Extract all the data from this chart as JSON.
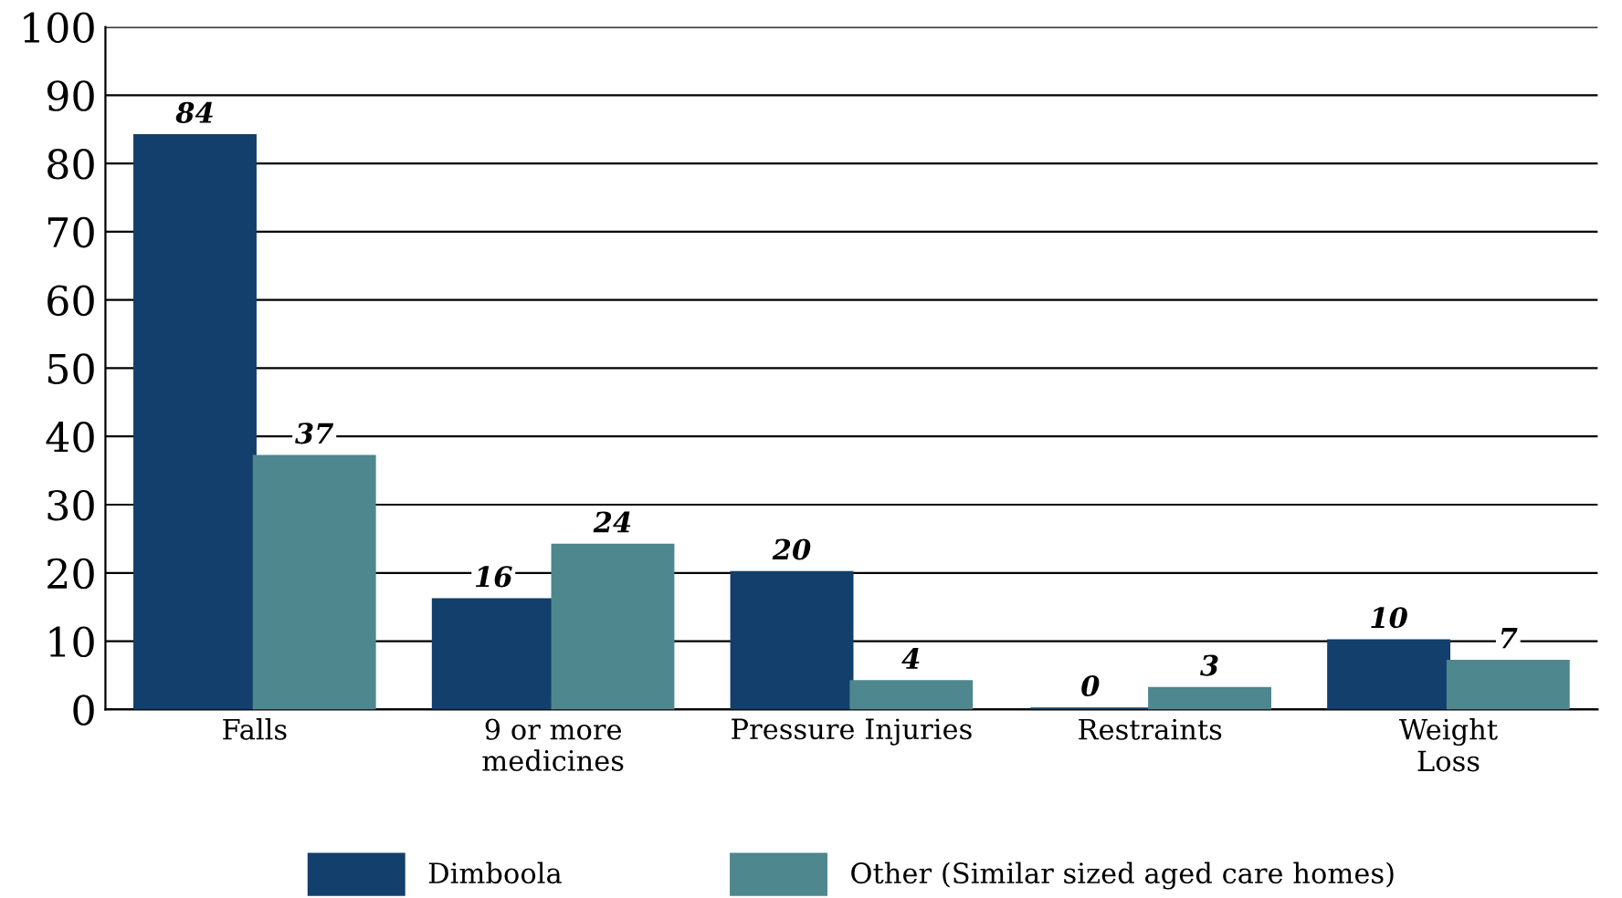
{
  "chart_data": {
    "type": "bar",
    "categories": [
      "Falls",
      "9 or more\nmedicines",
      "Pressure Injuries",
      "Restraints",
      "Weight\nLoss"
    ],
    "series": [
      {
        "name": "Dimboola",
        "color": "#123f6b",
        "values": [
          84,
          16,
          20,
          0,
          10
        ]
      },
      {
        "name": "Other (Similar sized aged care homes)",
        "color": "#4e878e",
        "values": [
          37,
          24,
          4,
          3,
          7
        ]
      }
    ],
    "ylim": [
      0,
      100
    ],
    "yticks": [
      0,
      10,
      20,
      30,
      40,
      50,
      60,
      70,
      80,
      90,
      100
    ],
    "grid": "y",
    "legend": "bottom",
    "data_labels": true
  }
}
